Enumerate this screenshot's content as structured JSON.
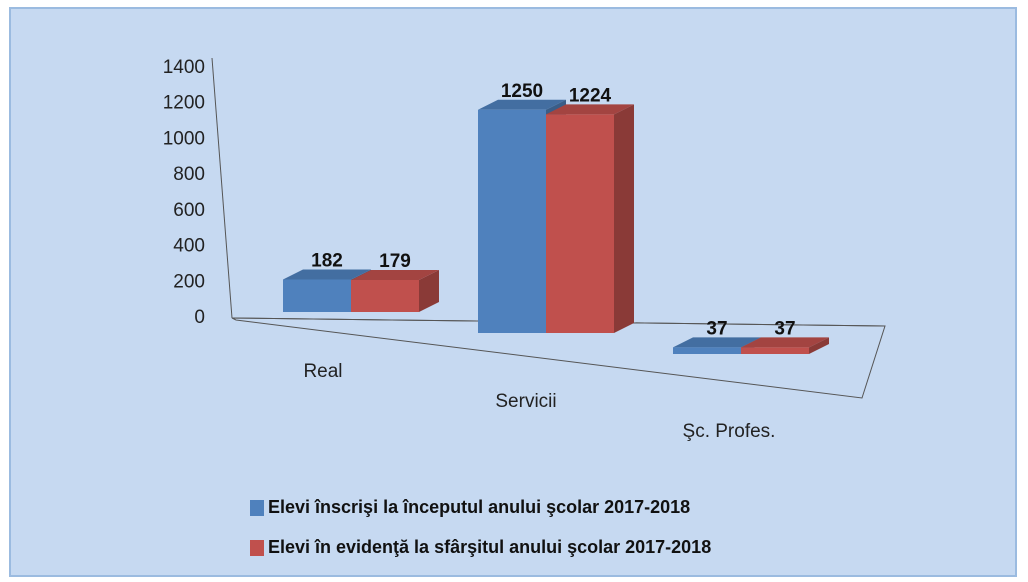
{
  "chart_data": {
    "type": "bar3d",
    "categories": [
      "Real",
      "Servicii",
      "Şc. Profes."
    ],
    "series": [
      {
        "name": "Elevi înscrişi la începutul anului şcolar 2017-2018",
        "color": "#4f81bd",
        "values": [
          182,
          1250,
          37
        ]
      },
      {
        "name": "Elevi în evidenţă la sfârşitul anului şcolar 2017-2018",
        "color": "#c0504d",
        "values": [
          179,
          1224,
          37
        ]
      }
    ],
    "ylim": [
      0,
      1400
    ],
    "yticks": [
      0,
      200,
      400,
      600,
      800,
      1000,
      1200,
      1400
    ],
    "legend": "bottom"
  }
}
